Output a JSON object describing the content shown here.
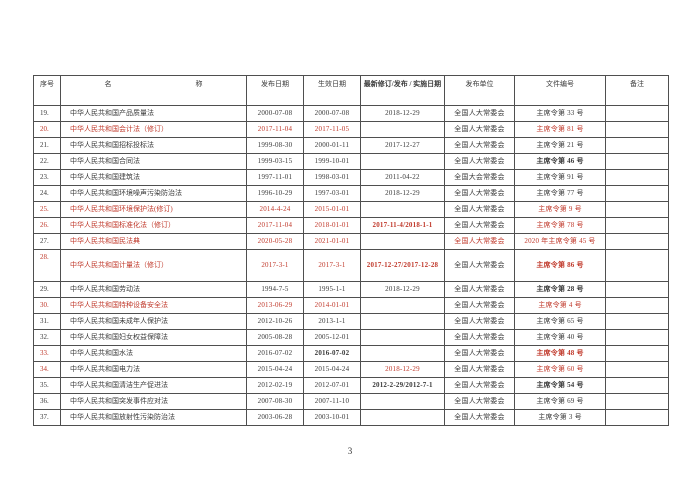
{
  "page": {
    "number": "3"
  },
  "table": {
    "columns": [
      {
        "key": "no",
        "label": "序号"
      },
      {
        "key": "name",
        "label": "名　　　　　　　　　　　　称"
      },
      {
        "key": "pub",
        "label": "发布日期"
      },
      {
        "key": "eff",
        "label": "生效日期"
      },
      {
        "key": "rev",
        "label": "最新修订/发布 / 实施日期"
      },
      {
        "key": "unit",
        "label": "发布单位"
      },
      {
        "key": "doc",
        "label": "文件编号"
      },
      {
        "key": "note",
        "label": "备注"
      }
    ],
    "rows": [
      {
        "no": "19.",
        "name": "中华人民共和国产品质量法",
        "pub": "2000-07-08",
        "eff": "2000-07-08",
        "rev": "2018-12-29",
        "unit": "全国人大常委会",
        "doc": "主席令第 33 号",
        "note": "",
        "styles": {}
      },
      {
        "no": "20.",
        "name": "中华人民共和国会计法（修订）",
        "pub": "2017-11-04",
        "eff": "2017-11-05",
        "rev": "",
        "unit": "全国人大常委会",
        "doc": "主席令第 81 号",
        "note": "",
        "styles": {
          "no": "red",
          "name": "red",
          "pub": "red",
          "eff": "red",
          "doc": "red"
        }
      },
      {
        "no": "21.",
        "name": "中华人民共和国招标投标法",
        "pub": "1999-08-30",
        "eff": "2000-01-11",
        "rev": "2017-12-27",
        "unit": "全国人大常委会",
        "doc": "主席令第 21 号",
        "note": "",
        "styles": {}
      },
      {
        "no": "22.",
        "name": "中华人民共和国合同法",
        "pub": "1999-03-15",
        "eff": "1999-10-01",
        "rev": "",
        "unit": "全国人大常委会",
        "doc": "主席令第 46 号",
        "note": "",
        "styles": {
          "doc": "bold"
        }
      },
      {
        "no": "23.",
        "name": "中华人民共和国建筑法",
        "pub": "1997-11-01",
        "eff": "1998-03-01",
        "rev": "2011-04-22",
        "unit": "全国大会常委会",
        "doc": "主席令第 91 号",
        "note": "",
        "styles": {}
      },
      {
        "no": "24.",
        "name": "中华人民共和国环境噪声污染防治法",
        "pub": "1996-10-29",
        "eff": "1997-03-01",
        "rev": "2018-12-29",
        "unit": "全国人大常委会",
        "doc": "主席令第 77 号",
        "note": "",
        "styles": {}
      },
      {
        "no": "25.",
        "name": "中华人民共和国环境保护法(修订)",
        "pub": "2014-4-24",
        "eff": "2015-01-01",
        "rev": "",
        "unit": "全国人大常委会",
        "doc": "主席令第 9 号",
        "note": "",
        "styles": {
          "no": "red",
          "name": "red",
          "pub": "red",
          "eff": "red",
          "doc": "red"
        }
      },
      {
        "no": "26.",
        "name": "中华人民共和国标准化法（修订）",
        "pub": "2017-11-04",
        "eff": "2018-01-01",
        "rev": "2017-11-4/2018-1-1",
        "unit": "全国人大常委会",
        "doc": "主席令第 78 号",
        "note": "",
        "styles": {
          "no": "red",
          "name": "red",
          "pub": "red",
          "eff": "red",
          "rev": "red bold",
          "doc": "red"
        }
      },
      {
        "no": "27.",
        "name": "中华人民共和国民法典",
        "pub": "2020-05-28",
        "eff": "2021-01-01",
        "rev": "",
        "unit": "全国人大常委会",
        "doc": "2020 年主席令第 45 号",
        "note": "",
        "styles": {
          "name": "red",
          "pub": "red",
          "eff": "red",
          "unit": "red",
          "doc": "red"
        }
      },
      {
        "no": "28.",
        "name": "中华人民共和国计量法（修订）",
        "pub": "2017-3-1",
        "eff": "2017-3-1",
        "rev": "2017-12-27/2017-12-28",
        "unit": "全国人大常委会",
        "doc": "主席令第 86 号",
        "note": "",
        "tall": true,
        "styles": {
          "no": "red",
          "name": "red",
          "pub": "red",
          "eff": "red",
          "rev": "red bold",
          "doc": "red bold"
        }
      },
      {
        "no": "29.",
        "name": "中华人民共和国劳动法",
        "pub": "1994-7-5",
        "eff": "1995-1-1",
        "rev": "2018-12-29",
        "unit": "全国人大常委会",
        "doc": "主席令第 28 号",
        "note": "",
        "styles": {
          "doc": "bold"
        }
      },
      {
        "no": "30.",
        "name": "中华人民共和国特种设备安全法",
        "pub": "2013-06-29",
        "eff": "2014-01-01",
        "rev": "",
        "unit": "全国人大常委会",
        "doc": "主席令第 4 号",
        "note": "",
        "styles": {
          "no": "red",
          "name": "red",
          "pub": "red",
          "eff": "red",
          "doc": "red"
        }
      },
      {
        "no": "31.",
        "name": "中华人民共和国未成年人保护法",
        "pub": "2012-10-26",
        "eff": "2013-1-1",
        "rev": "",
        "unit": "全国人大常委会",
        "doc": "主席令第 65 号",
        "note": "",
        "styles": {}
      },
      {
        "no": "32.",
        "name": "中华人民共和国妇女权益保障法",
        "pub": "2005-08-28",
        "eff": "2005-12-01",
        "rev": "",
        "unit": "全国人大常委会",
        "doc": "主席令第 40 号",
        "note": "",
        "styles": {}
      },
      {
        "no": "33.",
        "name": "中华人民共和国水法",
        "pub": "2016-07-02",
        "eff": "2016-07-02",
        "rev": "",
        "unit": "全国人大常委会",
        "doc": "主席令第 48 号",
        "note": "",
        "styles": {
          "no": "red",
          "eff": "bold",
          "doc": "red bold"
        }
      },
      {
        "no": "34.",
        "name": "中华人民共和国电力法",
        "pub": "2015-04-24",
        "eff": "2015-04-24",
        "rev": "2018-12-29",
        "unit": "全国人大常委会",
        "doc": "主席令第 60 号",
        "note": "",
        "styles": {
          "no": "red",
          "rev": "red",
          "doc": "red"
        }
      },
      {
        "no": "35.",
        "name": "中华人民共和国清洁生产促进法",
        "pub": "2012-02-19",
        "eff": "2012-07-01",
        "rev": "2012-2-29/2012-7-1",
        "unit": "全国人大常委会",
        "doc": "主席令第 54 号",
        "note": "",
        "styles": {
          "rev": "bold",
          "doc": "bold"
        }
      },
      {
        "no": "36.",
        "name": "中华人民共和国突发事件应对法",
        "pub": "2007-08-30",
        "eff": "2007-11-10",
        "rev": "",
        "unit": "全国人大常委会",
        "doc": "主席令第 69 号",
        "note": "",
        "styles": {}
      },
      {
        "no": "37.",
        "name": "中华人民共和国放射性污染防治法",
        "pub": "2003-06-28",
        "eff": "2003-10-01",
        "rev": "",
        "unit": "全国人大常委会",
        "doc": "主席令第 3 号",
        "note": "",
        "styles": {}
      }
    ]
  }
}
